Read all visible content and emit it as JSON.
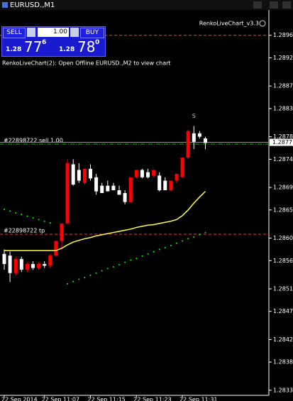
{
  "window": {
    "title": "EURUSD.,M1",
    "indicator": "RenkoLiveChart_v3.3",
    "message": "RenkoLiveChart(2): Open Offline EURUSD.,M2 to view chart"
  },
  "trade_panel": {
    "sell": "SELL",
    "buy": "BUY",
    "lot": "1.00",
    "sell_price": {
      "base": "1.28",
      "pips": "77",
      "fraction": "6"
    },
    "buy_price": {
      "base": "1.28",
      "pips": "78",
      "fraction": "0"
    }
  },
  "chart_data": {
    "type": "candlestick",
    "up_color": "#ff0000",
    "down_color": "#ffffff",
    "open": [
      1.28572,
      1.28569,
      1.28538,
      1.28563,
      1.28544,
      1.28554,
      1.28547,
      1.28554,
      1.28551,
      1.28569,
      1.28595,
      1.28626,
      1.28731,
      1.28721,
      1.28698,
      1.28723,
      1.28708,
      1.28693,
      1.28693,
      1.28693,
      1.28685,
      1.2868,
      1.28664,
      1.28708,
      1.28721,
      1.28717,
      1.28711,
      1.28711,
      1.28702,
      1.28685,
      1.28702,
      1.28708,
      1.28743,
      1.28786,
      1.28786,
      1.28777
    ],
    "high": [
      1.2858,
      1.28576,
      1.28567,
      1.28567,
      1.28557,
      1.28559,
      1.28557,
      1.28559,
      1.28572,
      1.28595,
      1.28626,
      1.2874,
      1.2874,
      1.28733,
      1.28723,
      1.28731,
      1.28714,
      1.28698,
      1.28702,
      1.28698,
      1.28693,
      1.28685,
      1.28708,
      1.28721,
      1.28723,
      1.28723,
      1.28721,
      1.28717,
      1.28708,
      1.28702,
      1.28714,
      1.28743,
      1.28792,
      1.28799,
      1.2879,
      1.2878
    ],
    "low": [
      1.28544,
      1.28522,
      1.28534,
      1.2854,
      1.2854,
      1.28544,
      1.28544,
      1.28547,
      1.28547,
      1.28567,
      1.2858,
      1.28626,
      1.28693,
      1.28698,
      1.28695,
      1.28702,
      1.28677,
      1.2868,
      1.28683,
      1.28685,
      1.28677,
      1.2866,
      1.28664,
      1.28706,
      1.28706,
      1.28706,
      1.28708,
      1.28683,
      1.28685,
      1.28683,
      1.28698,
      1.28706,
      1.2874,
      1.28758,
      1.28777,
      1.28758
    ],
    "close": [
      1.28554,
      1.28538,
      1.28563,
      1.28544,
      1.28554,
      1.28547,
      1.28554,
      1.28551,
      1.28569,
      1.28595,
      1.28626,
      1.28733,
      1.28695,
      1.28702,
      1.28723,
      1.28706,
      1.28683,
      1.2868,
      1.28683,
      1.28685,
      1.28677,
      1.28664,
      1.28708,
      1.28721,
      1.28708,
      1.28708,
      1.28721,
      1.28685,
      1.28685,
      1.28702,
      1.28714,
      1.28743,
      1.2879,
      1.28771,
      1.2878,
      1.28769
    ],
    "series": [
      {
        "color": "#ffff40",
        "style": "line",
        "values": [
          1.28578,
          1.28578,
          1.28578,
          1.28578,
          1.28578,
          1.28578,
          1.28578,
          1.28578,
          1.28578,
          1.28578,
          1.28582,
          1.28588,
          1.28593,
          1.28596,
          1.28599,
          1.28601,
          1.28604,
          1.28606,
          1.28608,
          1.2861,
          1.28612,
          1.28614,
          1.28616,
          1.28619,
          1.28621,
          1.28623,
          1.28624,
          1.28626,
          1.28628,
          1.2863,
          1.28633,
          1.2864,
          1.2865,
          1.28662,
          1.28673,
          1.28683
        ]
      },
      {
        "color": "#00ff00",
        "style": "dots",
        "values": [
          1.28651,
          1.28648,
          1.28645,
          1.28642,
          1.28639,
          1.28636,
          1.28633,
          1.2863,
          1.28627,
          null,
          null,
          1.28519,
          1.28523,
          1.28527,
          1.2853,
          1.28534,
          1.28538,
          1.28542,
          1.28546,
          1.28549,
          1.28553,
          1.28557,
          1.28561,
          1.28564,
          1.28568,
          1.28572,
          1.28576,
          1.2858,
          1.28583,
          1.28587,
          1.28591,
          1.28595,
          1.28599,
          1.28602,
          1.28606,
          1.2861
        ]
      }
    ],
    "hlines": [
      {
        "value": 1.2896,
        "color": "#ff3030",
        "style": "dash"
      },
      {
        "label": "#22898722 sell 1.00",
        "value": 1.28767,
        "color": "#00c000",
        "style": "dashdot"
      },
      {
        "label": "#22898722 tp",
        "value": 1.28607,
        "color": "#ff3030",
        "style": "dash"
      }
    ],
    "bid": 1.2877,
    "marker": {
      "text": "S",
      "index": 33
    },
    "ylim": [
      1.28321,
      1.29005
    ],
    "yticks": [
      1.2896,
      1.2892,
      1.2887,
      1.2883,
      1.2878,
      1.2874,
      1.2869,
      1.2865,
      {
        "value": 1.286,
        "label": "1.2860"
      },
      1.2856,
      1.2851,
      1.2847,
      1.2842,
      1.2838,
      1.2833
    ],
    "xticks": [
      {
        "value": 0,
        "label": "22 Sep 2014"
      },
      {
        "value": 7,
        "label": "22 Sep 11:07"
      },
      {
        "value": 15,
        "label": "22 Sep 11:15"
      },
      {
        "value": 23,
        "label": "22 Sep 11:23"
      },
      {
        "value": 31,
        "label": "22 Sep 11:31"
      }
    ]
  }
}
